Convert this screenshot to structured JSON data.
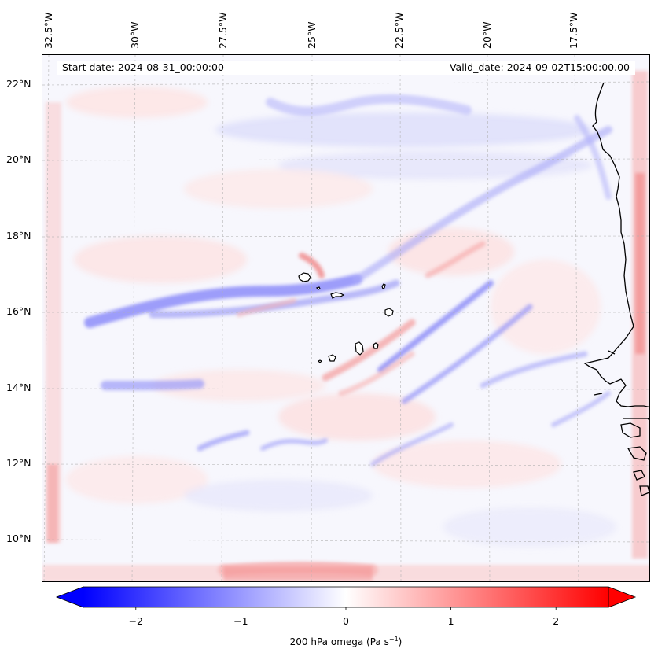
{
  "map": {
    "start_date": "Start date: 2024-08-31_00:00:00",
    "valid_date": "Valid_date: 2024-09-02T15:00:00.00",
    "longitude_labels": [
      "32.5°W",
      "30°W",
      "27.5°W",
      "25°W",
      "22.5°W",
      "20°W",
      "17.5°W"
    ],
    "latitude_labels": [
      "22°N",
      "20°N",
      "18°N",
      "16°N",
      "14°N",
      "12°N",
      "10°N"
    ],
    "field": "200 hPa omega",
    "units": "Pa s",
    "units_exponent": "−1"
  },
  "colorbar": {
    "min": -2.5,
    "max": 2.5,
    "ticks": [
      "−2",
      "−1",
      "0",
      "1",
      "2"
    ],
    "tick_values": [
      -2,
      -1,
      0,
      1,
      2
    ],
    "colormap": "bwr",
    "color_negative": "#0000ff",
    "color_zero": "#ffffff",
    "color_positive": "#ff0000"
  },
  "colors": {
    "coastline": "#000000",
    "gridline": "#b0b0b0",
    "background": "#f8f8fc"
  }
}
